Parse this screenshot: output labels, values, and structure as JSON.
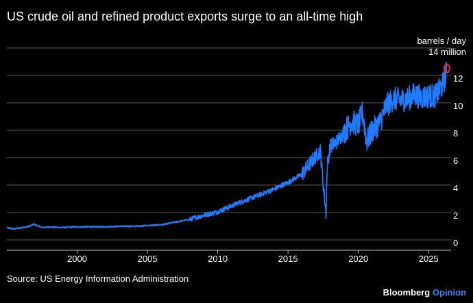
{
  "chart_data": {
    "type": "line",
    "title": "US crude oil and refined product exports surge to an all-time high",
    "ylabel_line1": "barrels / day",
    "ylabel_line2": "14 million",
    "xlabel": "",
    "x_ticks": [
      2000,
      2005,
      2010,
      2015,
      2020,
      2025
    ],
    "y_ticks": [
      0,
      2,
      4,
      6,
      8,
      10,
      12
    ],
    "xlim": [
      1995,
      2026.6
    ],
    "ylim": [
      -0.6,
      14
    ],
    "grid": true,
    "series": [
      {
        "name": "US crude oil and refined product exports",
        "color": "#1f7bff",
        "points": [
          [
            1995.0,
            0.9
          ],
          [
            1995.5,
            0.8
          ],
          [
            1996.0,
            0.9
          ],
          [
            1996.5,
            0.95
          ],
          [
            1996.9,
            1.15
          ],
          [
            1997.5,
            0.9
          ],
          [
            1998.0,
            0.95
          ],
          [
            1999.0,
            0.9
          ],
          [
            2000.0,
            0.95
          ],
          [
            2001.0,
            0.95
          ],
          [
            2002.0,
            0.95
          ],
          [
            2003.0,
            1.0
          ],
          [
            2004.0,
            1.0
          ],
          [
            2005.0,
            1.05
          ],
          [
            2006.0,
            1.1
          ],
          [
            2007.0,
            1.3
          ],
          [
            2008.0,
            1.5
          ],
          [
            2009.0,
            1.8
          ],
          [
            2010.0,
            2.05
          ],
          [
            2011.0,
            2.5
          ],
          [
            2012.0,
            2.9
          ],
          [
            2013.0,
            3.3
          ],
          [
            2014.0,
            3.7
          ],
          [
            2015.0,
            4.2
          ],
          [
            2016.0,
            4.8
          ],
          [
            2016.8,
            5.9
          ],
          [
            2017.3,
            6.5
          ],
          [
            2017.6,
            3.0
          ],
          [
            2017.7,
            2.0
          ],
          [
            2017.8,
            5.5
          ],
          [
            2018.0,
            6.8
          ],
          [
            2018.5,
            7.2
          ],
          [
            2019.0,
            7.9
          ],
          [
            2019.5,
            8.6
          ],
          [
            2020.0,
            8.4
          ],
          [
            2020.3,
            9.3
          ],
          [
            2020.6,
            7.2
          ],
          [
            2021.0,
            8.0
          ],
          [
            2021.5,
            8.5
          ],
          [
            2022.0,
            9.8
          ],
          [
            2022.5,
            10.3
          ],
          [
            2023.0,
            10.2
          ],
          [
            2023.5,
            10.3
          ],
          [
            2024.0,
            10.6
          ],
          [
            2024.5,
            10.4
          ],
          [
            2025.0,
            10.5
          ],
          [
            2025.5,
            10.5
          ],
          [
            2026.0,
            11.3
          ],
          [
            2026.3,
            12.3
          ]
        ]
      }
    ],
    "highlight": {
      "x": 2026.3,
      "y": 12.5,
      "color": "#ff2020"
    }
  },
  "footer": {
    "source": "Source: US Energy Information Administration",
    "brand_part1": "Bloomberg",
    "brand_part2": "Opinion"
  }
}
